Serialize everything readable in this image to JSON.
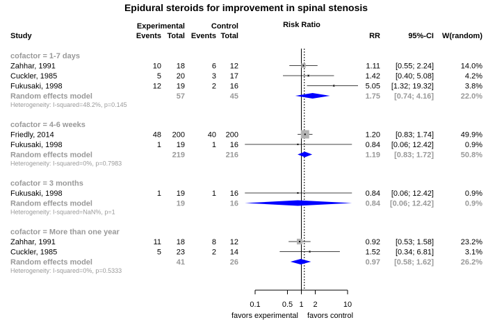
{
  "chart_data": {
    "type": "forest",
    "title": "Epidural steroids for improvement in spinal stenosis",
    "headers": {
      "study": "Study",
      "experimental": "Experimental",
      "control": "Control",
      "events": "Events",
      "total": "Total",
      "risk_ratio": "Risk Ratio",
      "rr": "RR",
      "ci": "95%-CI",
      "weight": "W(random)"
    },
    "x_axis": {
      "scale": "log",
      "ticks": [
        "0.1",
        "0.5",
        "1",
        "2",
        "10"
      ],
      "tick_values": [
        0.1,
        0.5,
        1,
        2,
        10
      ],
      "label_left": "favors experimental",
      "label_right": "favors control",
      "overall_estimate": 1.16
    },
    "colors": {
      "diamond": "#0000ff",
      "box": "#b3b3b3",
      "grey_text": "#999999",
      "text": "#000000"
    },
    "groups": [
      {
        "label": "cofactor = 1-7 days",
        "studies": [
          {
            "name": "Zahhar, 1991",
            "e_events": "10",
            "e_total": "18",
            "c_events": "6",
            "c_total": "12",
            "rr": 1.11,
            "lower": 0.55,
            "upper": 2.24,
            "rr_text": "1.11",
            "ci_text": "[0.55;  2.24]",
            "weight_text": "14.0%",
            "weight": 14.0
          },
          {
            "name": "Cuckler, 1985",
            "e_events": "5",
            "e_total": "20",
            "c_events": "3",
            "c_total": "17",
            "rr": 1.42,
            "lower": 0.4,
            "upper": 5.08,
            "rr_text": "1.42",
            "ci_text": "[0.40;  5.08]",
            "weight_text": "4.2%",
            "weight": 4.2
          },
          {
            "name": "Fukusaki, 1998",
            "e_events": "12",
            "e_total": "19",
            "c_events": "2",
            "c_total": "16",
            "rr": 5.05,
            "lower": 1.32,
            "upper": 19.32,
            "rr_text": "5.05",
            "ci_text": "[1.32; 19.32]",
            "weight_text": "3.8%",
            "weight": 3.8
          }
        ],
        "summary": {
          "label": "Random effects model",
          "e_total": "57",
          "c_total": "45",
          "rr": 1.75,
          "lower": 0.74,
          "upper": 4.16,
          "rr_text": "1.75",
          "ci_text": "[0.74;  4.16]",
          "weight_text": "22.0%"
        },
        "heterogeneity": "Heterogeneity: I-squared=48.2%, p=0.145"
      },
      {
        "label": "cofactor = 4-6 weeks",
        "studies": [
          {
            "name": "Friedly, 2014",
            "e_events": "48",
            "e_total": "200",
            "c_events": "40",
            "c_total": "200",
            "rr": 1.2,
            "lower": 0.83,
            "upper": 1.74,
            "rr_text": "1.20",
            "ci_text": "[0.83;  1.74]",
            "weight_text": "49.9%",
            "weight": 49.9
          },
          {
            "name": "Fukusaki, 1998",
            "e_events": "1",
            "e_total": "19",
            "c_events": "1",
            "c_total": "16",
            "rr": 0.84,
            "lower": 0.06,
            "upper": 12.42,
            "rr_text": "0.84",
            "ci_text": "[0.06; 12.42]",
            "weight_text": "0.9%",
            "weight": 0.9
          }
        ],
        "summary": {
          "label": "Random effects model",
          "e_total": "219",
          "c_total": "216",
          "rr": 1.19,
          "lower": 0.83,
          "upper": 1.72,
          "rr_text": "1.19",
          "ci_text": "[0.83;  1.72]",
          "weight_text": "50.8%"
        },
        "heterogeneity": "Heterogeneity: I-squared=0%, p=0.7983"
      },
      {
        "label": "cofactor = 3 months",
        "studies": [
          {
            "name": "Fukusaki, 1998",
            "e_events": "1",
            "e_total": "19",
            "c_events": "1",
            "c_total": "16",
            "rr": 0.84,
            "lower": 0.06,
            "upper": 12.42,
            "rr_text": "0.84",
            "ci_text": "[0.06; 12.42]",
            "weight_text": "0.9%",
            "weight": 0.9
          }
        ],
        "summary": {
          "label": "Random effects model",
          "e_total": "19",
          "c_total": "16",
          "rr": 0.84,
          "lower": 0.06,
          "upper": 12.42,
          "rr_text": "0.84",
          "ci_text": "[0.06; 12.42]",
          "weight_text": "0.9%"
        },
        "heterogeneity": "Heterogeneity: I-squared=NaN%, p=1"
      },
      {
        "label": "cofactor = More than one year",
        "studies": [
          {
            "name": "Zahhar, 1991",
            "e_events": "11",
            "e_total": "18",
            "c_events": "8",
            "c_total": "12",
            "rr": 0.92,
            "lower": 0.53,
            "upper": 1.58,
            "rr_text": "0.92",
            "ci_text": "[0.53;  1.58]",
            "weight_text": "23.2%",
            "weight": 23.2
          },
          {
            "name": "Cuckler, 1985",
            "e_events": "5",
            "e_total": "23",
            "c_events": "2",
            "c_total": "14",
            "rr": 1.52,
            "lower": 0.34,
            "upper": 6.81,
            "rr_text": "1.52",
            "ci_text": "[0.34;  6.81]",
            "weight_text": "3.1%",
            "weight": 3.1
          }
        ],
        "summary": {
          "label": "Random effects model",
          "e_total": "41",
          "c_total": "26",
          "rr": 0.97,
          "lower": 0.58,
          "upper": 1.62,
          "rr_text": "0.97",
          "ci_text": "[0.58;  1.62]",
          "weight_text": "26.2%"
        },
        "heterogeneity": "Heterogeneity: I-squared=0%, p=0.5333"
      }
    ]
  }
}
